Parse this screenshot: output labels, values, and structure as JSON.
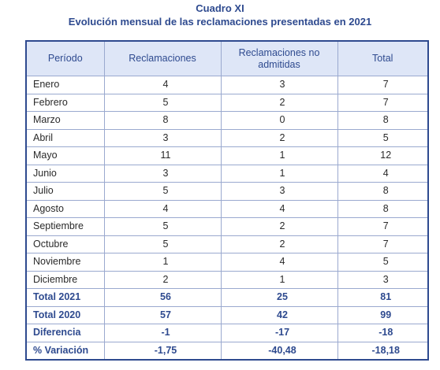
{
  "caption": {
    "line1": "Cuadro XI",
    "line2": "Evolución mensual de las reclamaciones presentadas en 2021"
  },
  "headers": [
    "Período",
    "Reclamaciones",
    "Reclamaciones no admitidas",
    "Total"
  ],
  "months": [
    {
      "name": "Enero",
      "reclamaciones": "4",
      "no_admitidas": "3",
      "total": "7"
    },
    {
      "name": "Febrero",
      "reclamaciones": "5",
      "no_admitidas": "2",
      "total": "7"
    },
    {
      "name": "Marzo",
      "reclamaciones": "8",
      "no_admitidas": "0",
      "total": "8"
    },
    {
      "name": "Abril",
      "reclamaciones": "3",
      "no_admitidas": "2",
      "total": "5"
    },
    {
      "name": "Mayo",
      "reclamaciones": "11",
      "no_admitidas": "1",
      "total": "12"
    },
    {
      "name": "Junio",
      "reclamaciones": "3",
      "no_admitidas": "1",
      "total": "4"
    },
    {
      "name": "Julio",
      "reclamaciones": "5",
      "no_admitidas": "3",
      "total": "8"
    },
    {
      "name": "Agosto",
      "reclamaciones": "4",
      "no_admitidas": "4",
      "total": "8"
    },
    {
      "name": "Septiembre",
      "reclamaciones": "5",
      "no_admitidas": "2",
      "total": "7"
    },
    {
      "name": "Octubre",
      "reclamaciones": "5",
      "no_admitidas": "2",
      "total": "7"
    },
    {
      "name": "Noviembre",
      "reclamaciones": "1",
      "no_admitidas": "4",
      "total": "5"
    },
    {
      "name": "Diciembre",
      "reclamaciones": "2",
      "no_admitidas": "1",
      "total": "3"
    }
  ],
  "summary": [
    {
      "name": "Total 2021",
      "reclamaciones": "56",
      "no_admitidas": "25",
      "total": "81"
    },
    {
      "name": "Total 2020",
      "reclamaciones": "57",
      "no_admitidas": "42",
      "total": "99"
    },
    {
      "name": "Diferencia",
      "reclamaciones": "-1",
      "no_admitidas": "-17",
      "total": "-18"
    },
    {
      "name": "% Variación",
      "reclamaciones": "-1,75",
      "no_admitidas": "-40,48",
      "total": "-18,18"
    }
  ],
  "colors": {
    "accent": "#2e4a8f",
    "header_bg": "#dee6f7",
    "grid": "#9aa9cf"
  }
}
